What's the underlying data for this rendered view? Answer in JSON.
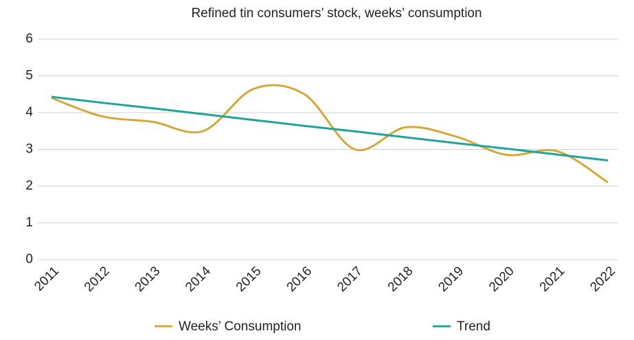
{
  "chart_data": {
    "type": "line",
    "title": "Refined tin consumers’ stock, weeks’ consumption",
    "categories": [
      "2011",
      "2012",
      "2013",
      "2014",
      "2015",
      "2016",
      "2017",
      "2018",
      "2019",
      "2020",
      "2021",
      "2022"
    ],
    "series": [
      {
        "name": "Weeks’ Consumption",
        "color": "#d4a838",
        "smooth": true,
        "values": [
          4.4,
          3.9,
          3.75,
          3.5,
          4.65,
          4.5,
          3.0,
          3.6,
          3.35,
          2.85,
          2.95,
          2.1
        ]
      },
      {
        "name": "Trend",
        "color": "#1fa39a",
        "smooth": false,
        "values": [
          4.43,
          4.27,
          4.12,
          3.96,
          3.8,
          3.64,
          3.49,
          3.33,
          3.17,
          3.02,
          2.86,
          2.7
        ]
      }
    ],
    "ylim": [
      0,
      6
    ],
    "yticks": [
      0,
      1,
      2,
      3,
      4,
      5,
      6
    ],
    "grid": true,
    "legend": "bottom"
  }
}
